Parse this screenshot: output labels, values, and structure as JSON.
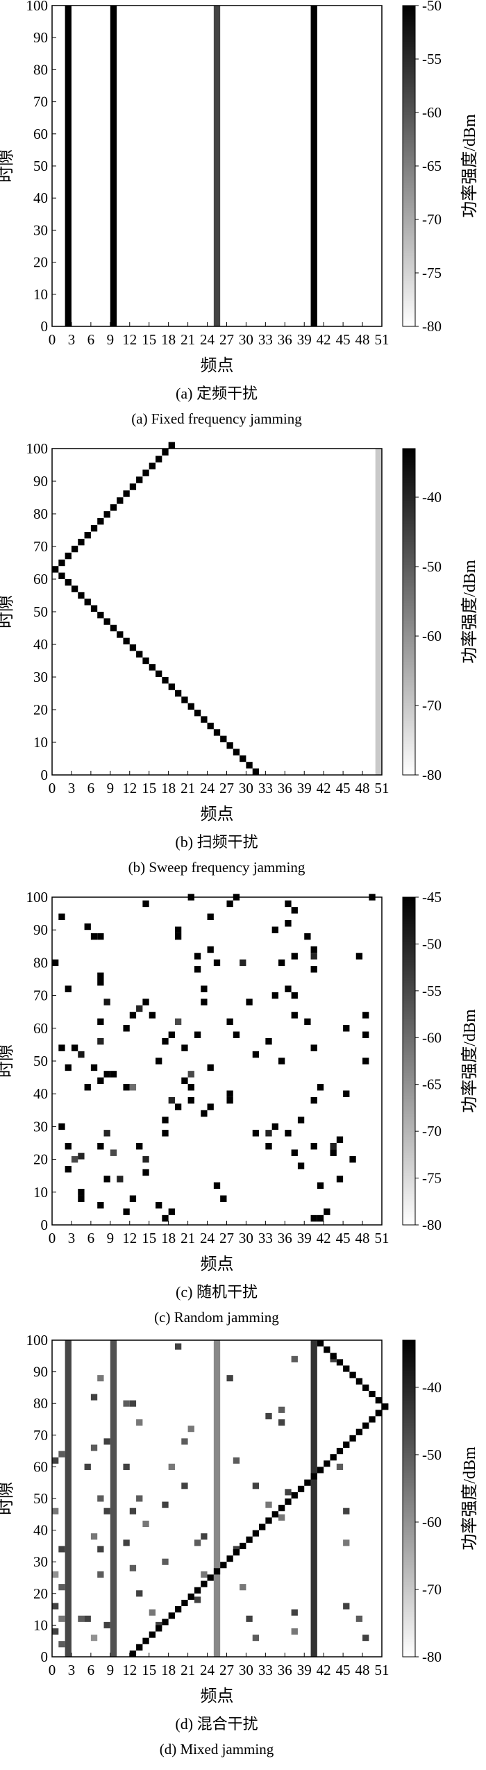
{
  "chart_data": [
    {
      "type": "heatmap",
      "cmap": "grayscale (white = low, black = high)",
      "xlabel": "频点",
      "ylabel": "时隙",
      "colorbar_label": "功率强度/dBm",
      "xlim": [
        0,
        51
      ],
      "ylim": [
        0,
        100
      ],
      "x_ticks": [
        0,
        3,
        6,
        9,
        12,
        15,
        18,
        21,
        24,
        27,
        30,
        33,
        36,
        39,
        42,
        45,
        48,
        51
      ],
      "y_ticks": [
        0,
        10,
        20,
        30,
        40,
        50,
        60,
        70,
        80,
        90,
        100
      ],
      "colorbar_range": [
        -80,
        -50
      ],
      "colorbar_ticks": [
        -50,
        -55,
        -60,
        -65,
        -70,
        -75,
        -80
      ],
      "caption_cn": "(a) 定频干扰",
      "caption_en": "(a) Fixed frequency jamming",
      "columns": [
        {
          "freq": 2,
          "power": -50,
          "from": 0,
          "to": 100
        },
        {
          "freq": 9,
          "power": -50,
          "from": 0,
          "to": 100
        },
        {
          "freq": 25,
          "power": -58,
          "from": 0,
          "to": 100
        },
        {
          "freq": 40,
          "power": -50,
          "from": 0,
          "to": 100
        }
      ],
      "cells": []
    },
    {
      "type": "heatmap",
      "cmap": "grayscale (white = low, black = high)",
      "xlabel": "频点",
      "ylabel": "时隙",
      "colorbar_label": "功率强度/dBm",
      "xlim": [
        0,
        51
      ],
      "ylim": [
        0,
        100
      ],
      "x_ticks": [
        0,
        3,
        6,
        9,
        12,
        15,
        18,
        21,
        24,
        27,
        30,
        33,
        36,
        39,
        42,
        45,
        48,
        51
      ],
      "y_ticks": [
        0,
        10,
        20,
        30,
        40,
        50,
        60,
        70,
        80,
        90,
        100
      ],
      "colorbar_range": [
        -80,
        -33
      ],
      "colorbar_ticks": [
        -40,
        -50,
        -60,
        -70,
        -80
      ],
      "caption_cn": "(b) 扫频干扰",
      "caption_en": "(b) Sweep frequency jamming",
      "columns": [
        {
          "freq": 50,
          "power": -70,
          "from": 0,
          "to": 100
        }
      ],
      "cells": [],
      "sweep": [
        {
          "f0": 31,
          "t0": 0,
          "f1": 0,
          "t1": 62,
          "power": -33
        },
        {
          "f0": 1,
          "t0": 64,
          "f1": 18,
          "t1": 100,
          "power": -33
        }
      ]
    },
    {
      "type": "heatmap",
      "cmap": "grayscale (white = low, black = high)",
      "xlabel": "频点",
      "ylabel": "时隙",
      "colorbar_label": "功率强度/dBm",
      "xlim": [
        0,
        51
      ],
      "ylim": [
        0,
        100
      ],
      "x_ticks": [
        0,
        3,
        6,
        9,
        12,
        15,
        18,
        21,
        24,
        27,
        30,
        33,
        36,
        39,
        42,
        45,
        48,
        51
      ],
      "y_ticks": [
        0,
        10,
        20,
        30,
        40,
        50,
        60,
        70,
        80,
        90,
        100
      ],
      "colorbar_range": [
        -80,
        -45
      ],
      "colorbar_ticks": [
        -45,
        -50,
        -55,
        -60,
        -65,
        -70,
        -75,
        -80
      ],
      "caption_cn": "(c) 随机干扰",
      "caption_en": "(c) Random jamming",
      "columns": [],
      "cells": [
        [
          1,
          93,
          -45
        ],
        [
          0,
          79,
          -45
        ],
        [
          2,
          71,
          -45
        ],
        [
          1,
          53,
          -45
        ],
        [
          3,
          53,
          -45
        ],
        [
          2,
          47,
          -45
        ],
        [
          4,
          51,
          -48
        ],
        [
          1,
          29,
          -45
        ],
        [
          2,
          23,
          -45
        ],
        [
          3,
          19,
          -55
        ],
        [
          2,
          16,
          -45
        ],
        [
          4,
          20,
          -50
        ],
        [
          5,
          41,
          -45
        ],
        [
          5,
          90,
          -45
        ],
        [
          6,
          87,
          -45
        ],
        [
          7,
          87,
          -45
        ],
        [
          7,
          75,
          -45
        ],
        [
          7,
          73,
          -45
        ],
        [
          8,
          67,
          -48
        ],
        [
          7,
          61,
          -45
        ],
        [
          7,
          55,
          -50
        ],
        [
          6,
          47,
          -45
        ],
        [
          7,
          43,
          -45
        ],
        [
          8,
          45,
          -45
        ],
        [
          9,
          45,
          -45
        ],
        [
          8,
          27,
          -50
        ],
        [
          7,
          23,
          -45
        ],
        [
          9,
          21,
          -55
        ],
        [
          8,
          13,
          -45
        ],
        [
          7,
          5,
          -45
        ],
        [
          4,
          9,
          -45
        ],
        [
          4,
          7,
          -45
        ],
        [
          10,
          13,
          -50
        ],
        [
          11,
          41,
          -45
        ],
        [
          11,
          59,
          -45
        ],
        [
          12,
          63,
          -45
        ],
        [
          12,
          41,
          -60
        ],
        [
          13,
          65,
          -50
        ],
        [
          14,
          67,
          -45
        ],
        [
          15,
          63,
          -45
        ],
        [
          14,
          97,
          -45
        ],
        [
          13,
          23,
          -45
        ],
        [
          14,
          19,
          -50
        ],
        [
          14,
          15,
          -45
        ],
        [
          12,
          7,
          -45
        ],
        [
          11,
          3,
          -45
        ],
        [
          16,
          49,
          -45
        ],
        [
          17,
          55,
          -45
        ],
        [
          17,
          31,
          -45
        ],
        [
          17,
          27,
          -45
        ],
        [
          16,
          5,
          -45
        ],
        [
          17,
          1,
          -45
        ],
        [
          18,
          3,
          -45
        ],
        [
          18,
          37,
          -50
        ],
        [
          19,
          35,
          -45
        ],
        [
          18,
          57,
          -45
        ],
        [
          19,
          61,
          -55
        ],
        [
          20,
          53,
          -45
        ],
        [
          19,
          89,
          -45
        ],
        [
          19,
          87,
          -45
        ],
        [
          20,
          43,
          -45
        ],
        [
          21,
          45,
          -55
        ],
        [
          21,
          37,
          -45
        ],
        [
          21,
          41,
          -45
        ],
        [
          22,
          77,
          -45
        ],
        [
          22,
          81,
          -45
        ],
        [
          23,
          71,
          -45
        ],
        [
          23,
          67,
          -45
        ],
        [
          21,
          99,
          -45
        ],
        [
          24,
          93,
          -45
        ],
        [
          24,
          83,
          -45
        ],
        [
          25,
          79,
          -45
        ],
        [
          22,
          57,
          -45
        ],
        [
          24,
          47,
          -45
        ],
        [
          23,
          33,
          -45
        ],
        [
          24,
          35,
          -45
        ],
        [
          25,
          11,
          -45
        ],
        [
          26,
          7,
          -45
        ],
        [
          27,
          37,
          -45
        ],
        [
          27,
          39,
          -45
        ],
        [
          27,
          61,
          -45
        ],
        [
          28,
          57,
          -45
        ],
        [
          27,
          97,
          -45
        ],
        [
          28,
          99,
          -45
        ],
        [
          29,
          79,
          -50
        ],
        [
          30,
          67,
          -45
        ],
        [
          31,
          51,
          -45
        ],
        [
          31,
          27,
          -45
        ],
        [
          33,
          23,
          -45
        ],
        [
          33,
          27,
          -50
        ],
        [
          34,
          29,
          -45
        ],
        [
          33,
          55,
          -45
        ],
        [
          34,
          69,
          -45
        ],
        [
          35,
          79,
          -45
        ],
        [
          34,
          89,
          -45
        ],
        [
          36,
          91,
          -45
        ],
        [
          36,
          97,
          -45
        ],
        [
          37,
          95,
          -45
        ],
        [
          37,
          81,
          -45
        ],
        [
          36,
          71,
          -45
        ],
        [
          37,
          69,
          -45
        ],
        [
          37,
          63,
          -45
        ],
        [
          35,
          49,
          -45
        ],
        [
          36,
          27,
          -45
        ],
        [
          38,
          31,
          -45
        ],
        [
          37,
          21,
          -45
        ],
        [
          38,
          17,
          -45
        ],
        [
          39,
          87,
          -45
        ],
        [
          40,
          83,
          -45
        ],
        [
          40,
          81,
          -50
        ],
        [
          40,
          77,
          -45
        ],
        [
          39,
          61,
          -45
        ],
        [
          40,
          53,
          -45
        ],
        [
          41,
          41,
          -45
        ],
        [
          40,
          37,
          -45
        ],
        [
          40,
          23,
          -45
        ],
        [
          41,
          11,
          -45
        ],
        [
          42,
          3,
          -45
        ],
        [
          41,
          1,
          -45
        ],
        [
          40,
          1,
          -45
        ],
        [
          43,
          21,
          -45
        ],
        [
          43,
          23,
          -50
        ],
        [
          44,
          25,
          -45
        ],
        [
          44,
          13,
          -45
        ],
        [
          45,
          39,
          -45
        ],
        [
          45,
          59,
          -45
        ],
        [
          46,
          19,
          -45
        ],
        [
          47,
          81,
          -45
        ],
        [
          48,
          49,
          -45
        ],
        [
          48,
          57,
          -45
        ],
        [
          48,
          63,
          -45
        ],
        [
          49,
          99,
          -45
        ]
      ]
    },
    {
      "type": "heatmap",
      "cmap": "grayscale (white = low, black = high)",
      "xlabel": "频点",
      "ylabel": "时隙",
      "colorbar_label": "功率强度/dBm",
      "xlim": [
        0,
        51
      ],
      "ylim": [
        0,
        100
      ],
      "x_ticks": [
        0,
        3,
        6,
        9,
        12,
        15,
        18,
        21,
        24,
        27,
        30,
        33,
        36,
        39,
        42,
        45,
        48,
        51
      ],
      "y_ticks": [
        0,
        10,
        20,
        30,
        40,
        50,
        60,
        70,
        80,
        90,
        100
      ],
      "colorbar_range": [
        -80,
        -33
      ],
      "colorbar_ticks": [
        -40,
        -50,
        -60,
        -70,
        -80
      ],
      "caption_cn": "(d) 混合干扰",
      "caption_en": "(d) Mixed jamming",
      "columns": [
        {
          "freq": 2,
          "power": -46,
          "from": 0,
          "to": 100
        },
        {
          "freq": 9,
          "power": -48,
          "from": 0,
          "to": 100
        },
        {
          "freq": 25,
          "power": -58,
          "from": 0,
          "to": 100
        },
        {
          "freq": 40,
          "power": -42,
          "from": 0,
          "to": 100
        }
      ],
      "sweep": [
        {
          "f0": 12,
          "t0": 0,
          "f1": 51,
          "t1": 78,
          "power": -33
        },
        {
          "f0": 51,
          "t0": 78,
          "f1": 41,
          "t1": 98,
          "power": -33
        }
      ],
      "cells": [
        [
          0,
          61,
          -45
        ],
        [
          1,
          63,
          -50
        ],
        [
          0,
          45,
          -55
        ],
        [
          1,
          33,
          -45
        ],
        [
          0,
          25,
          -60
        ],
        [
          1,
          21,
          -50
        ],
        [
          0,
          15,
          -45
        ],
        [
          1,
          11,
          -55
        ],
        [
          0,
          7,
          -45
        ],
        [
          1,
          3,
          -50
        ],
        [
          4,
          11,
          -50
        ],
        [
          5,
          11,
          -45
        ],
        [
          5,
          59,
          -45
        ],
        [
          6,
          65,
          -50
        ],
        [
          6,
          81,
          -45
        ],
        [
          7,
          87,
          -55
        ],
        [
          8,
          67,
          -45
        ],
        [
          7,
          49,
          -50
        ],
        [
          8,
          45,
          -45
        ],
        [
          6,
          37,
          -55
        ],
        [
          7,
          33,
          -45
        ],
        [
          7,
          25,
          -50
        ],
        [
          8,
          9,
          -45
        ],
        [
          6,
          5,
          -60
        ],
        [
          11,
          79,
          -50
        ],
        [
          12,
          79,
          -45
        ],
        [
          13,
          73,
          -55
        ],
        [
          11,
          59,
          -45
        ],
        [
          13,
          49,
          -50
        ],
        [
          12,
          45,
          -45
        ],
        [
          14,
          41,
          -55
        ],
        [
          11,
          35,
          -45
        ],
        [
          12,
          27,
          -50
        ],
        [
          13,
          19,
          -45
        ],
        [
          15,
          13,
          -55
        ],
        [
          16,
          9,
          -45
        ],
        [
          17,
          29,
          -50
        ],
        [
          17,
          47,
          -45
        ],
        [
          18,
          59,
          -55
        ],
        [
          19,
          97,
          -45
        ],
        [
          20,
          67,
          -50
        ],
        [
          20,
          53,
          -45
        ],
        [
          21,
          71,
          -55
        ],
        [
          22,
          17,
          -45
        ],
        [
          22,
          35,
          -50
        ],
        [
          23,
          37,
          -45
        ],
        [
          23,
          25,
          -55
        ],
        [
          27,
          87,
          -45
        ],
        [
          28,
          61,
          -50
        ],
        [
          28,
          33,
          -45
        ],
        [
          29,
          21,
          -55
        ],
        [
          30,
          11,
          -45
        ],
        [
          31,
          5,
          -50
        ],
        [
          31,
          53,
          -45
        ],
        [
          33,
          47,
          -55
        ],
        [
          33,
          75,
          -45
        ],
        [
          35,
          77,
          -50
        ],
        [
          35,
          73,
          -45
        ],
        [
          35,
          43,
          -55
        ],
        [
          36,
          51,
          -45
        ],
        [
          37,
          93,
          -50
        ],
        [
          37,
          13,
          -45
        ],
        [
          37,
          7,
          -55
        ],
        [
          43,
          93,
          -45
        ],
        [
          44,
          59,
          -50
        ],
        [
          45,
          45,
          -45
        ],
        [
          45,
          35,
          -55
        ],
        [
          45,
          15,
          -45
        ],
        [
          47,
          11,
          -50
        ],
        [
          48,
          5,
          -45
        ]
      ]
    }
  ]
}
